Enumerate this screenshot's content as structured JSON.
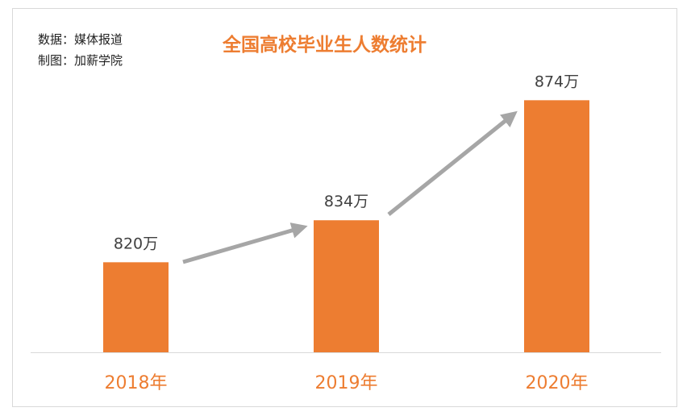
{
  "source_note": "数据：媒体报道",
  "maker_note": "制图：加薪学院",
  "chart_data": {
    "type": "bar",
    "title": "全国高校毕业生人数统计",
    "categories": [
      "2018年",
      "2019年",
      "2020年"
    ],
    "values": [
      820,
      834,
      874
    ],
    "data_labels": [
      "820万",
      "834万",
      "874万"
    ],
    "ylim": [
      790,
      880
    ],
    "grid": false,
    "bar_color": "#ed7d31",
    "label_color": "#ed7d31",
    "arrow_color": "#a6a6a6",
    "trend_arrows": true
  }
}
